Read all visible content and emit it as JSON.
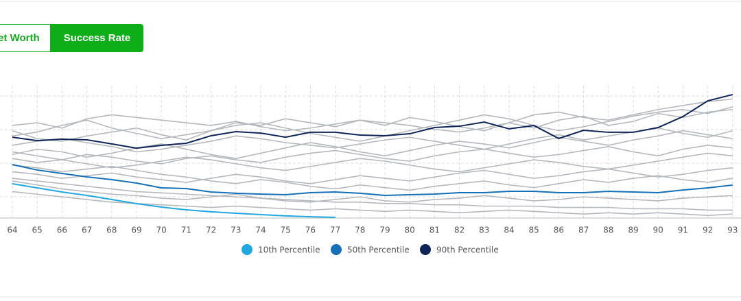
{
  "tabs": [
    "Net Worth",
    "Success Rate"
  ],
  "chart_data": {
    "type": "line",
    "categories": [
      "64",
      "65",
      "66",
      "67",
      "68",
      "69",
      "70",
      "71",
      "72",
      "73",
      "74",
      "75",
      "76",
      "77",
      "78",
      "79",
      "80",
      "81",
      "82",
      "83",
      "84",
      "85",
      "86",
      "87",
      "88",
      "89",
      "90",
      "91",
      "92",
      "93"
    ],
    "ylim": [
      0,
      100
    ],
    "grid": true,
    "simulation_color": "#b5b8bc",
    "simulations": [
      [
        70,
        72,
        68,
        75,
        78,
        76,
        74,
        72,
        70,
        73,
        69,
        66,
        68,
        71,
        74,
        72,
        70,
        67,
        65,
        68,
        72,
        78,
        80,
        76,
        74,
        78,
        82,
        85,
        88,
        90
      ],
      [
        55,
        58,
        60,
        57,
        54,
        50,
        52,
        55,
        58,
        62,
        60,
        57,
        55,
        53,
        56,
        59,
        61,
        58,
        55,
        52,
        56,
        60,
        63,
        59,
        62,
        65,
        68,
        64,
        61,
        66
      ],
      [
        45,
        42,
        44,
        48,
        46,
        43,
        41,
        45,
        47,
        44,
        42,
        46,
        49,
        51,
        48,
        45,
        43,
        47,
        50,
        52,
        49,
        46,
        48,
        51,
        54,
        50,
        47,
        52,
        55,
        53
      ],
      [
        35,
        33,
        30,
        32,
        34,
        31,
        29,
        27,
        30,
        33,
        31,
        28,
        26,
        29,
        32,
        30,
        28,
        31,
        34,
        36,
        33,
        30,
        32,
        35,
        37,
        34,
        31,
        33,
        36,
        38
      ],
      [
        28,
        25,
        22,
        20,
        18,
        17,
        15,
        14,
        16,
        18,
        15,
        13,
        12,
        14,
        16,
        13,
        12,
        14,
        15,
        17,
        15,
        13,
        14,
        16,
        15,
        14,
        13,
        15,
        16,
        17
      ],
      [
        20,
        18,
        16,
        14,
        12,
        11,
        10,
        9,
        8,
        9,
        8,
        7,
        6,
        7,
        6,
        5,
        6,
        5,
        4,
        5,
        6,
        5,
        4,
        3,
        4,
        3,
        4,
        3,
        2,
        3
      ],
      [
        62,
        65,
        70,
        74,
        68,
        64,
        60,
        63,
        66,
        70,
        72,
        68,
        64,
        61,
        58,
        62,
        66,
        70,
        74,
        78,
        75,
        70,
        66,
        69,
        73,
        77,
        80,
        82,
        79,
        84
      ],
      [
        50,
        47,
        44,
        41,
        38,
        40,
        43,
        46,
        44,
        41,
        38,
        36,
        39,
        42,
        45,
        43,
        40,
        37,
        35,
        38,
        41,
        44,
        42,
        39,
        37,
        40,
        43,
        46,
        49,
        47
      ],
      [
        40,
        38,
        35,
        37,
        39,
        36,
        33,
        31,
        28,
        26,
        29,
        27,
        24,
        22,
        25,
        23,
        21,
        24,
        26,
        28,
        25,
        23,
        26,
        29,
        27,
        30,
        32,
        29,
        27,
        30
      ],
      [
        66,
        60,
        58,
        62,
        65,
        68,
        63,
        59,
        66,
        72,
        70,
        75,
        72,
        69,
        74,
        70,
        76,
        73,
        69,
        66,
        72,
        68,
        74,
        77,
        70,
        73,
        79,
        76,
        80,
        82
      ],
      [
        30,
        28,
        26,
        24,
        22,
        20,
        19,
        18,
        17,
        16,
        15,
        14,
        13,
        12,
        12,
        11,
        11,
        10,
        10,
        9,
        9,
        9,
        8,
        8,
        8,
        7,
        7,
        7,
        6,
        6
      ],
      [
        48,
        52,
        50,
        46,
        49,
        53,
        56,
        52,
        48,
        45,
        49,
        53,
        57,
        54,
        50,
        47,
        51,
        55,
        58,
        56,
        53,
        57,
        61,
        58,
        55,
        59,
        62,
        66,
        63,
        60
      ]
    ],
    "series": [
      {
        "name": "10th Percentile",
        "color": "#22a7e0",
        "values": [
          25.9,
          22.8,
          19.7,
          17.1,
          14,
          10.9,
          8.3,
          6.2,
          4.7,
          3.6,
          2.6,
          1.6,
          1,
          0.5,
          null,
          null,
          null,
          null,
          null,
          null,
          null,
          null,
          null,
          null,
          null,
          null,
          null,
          null,
          null,
          null
        ]
      },
      {
        "name": "50th Percentile",
        "color": "#1570b8",
        "values": [
          40.4,
          36.3,
          33.7,
          31.1,
          29,
          26.4,
          22.8,
          22.3,
          19.7,
          18.7,
          18.1,
          17.6,
          19.2,
          19.7,
          18.7,
          17.1,
          17.6,
          18.1,
          19.2,
          19.2,
          20.2,
          20.2,
          19.2,
          19.2,
          20.2,
          19.7,
          19.2,
          21.2,
          22.8,
          24.9
        ]
      },
      {
        "name": "90th Percentile",
        "color": "#0e2459",
        "values": [
          61.1,
          58.5,
          59.6,
          59.1,
          56,
          52.8,
          54.9,
          56.5,
          62.2,
          65.3,
          64.2,
          61.1,
          64.8,
          64.8,
          62.7,
          62.2,
          63.7,
          68.4,
          69.4,
          72.5,
          67.4,
          69.9,
          60.1,
          66.3,
          64.8,
          64.8,
          68.4,
          76.7,
          88.6,
          93.3
        ]
      }
    ]
  }
}
